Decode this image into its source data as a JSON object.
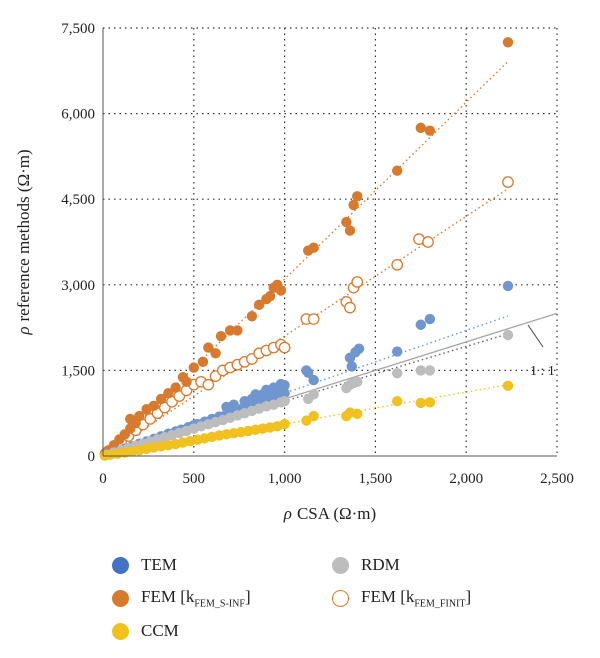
{
  "chart_data": {
    "type": "scatter",
    "x_axis": {
      "label_symbol": "ρ",
      "label_text": "CSA (Ω·m)",
      "min": 0,
      "max": 2500,
      "ticks": [
        0,
        500,
        1000,
        1500,
        2000,
        2500
      ],
      "tick_labels": [
        "0",
        "500",
        "1,000",
        "1,500",
        "2,000",
        "2,500"
      ]
    },
    "y_axis": {
      "label_symbol": "ρ",
      "label_text": "reference methods (Ω·m)",
      "min": 0,
      "max": 7500,
      "ticks": [
        0,
        1500,
        3000,
        4500,
        6000,
        7500
      ],
      "tick_labels": [
        "0",
        "1,500",
        "3,000",
        "4,500",
        "6,000",
        "7,500"
      ]
    },
    "grid": "dotted",
    "legend_position": "bottom",
    "annotation": "1 : 1",
    "reference_line": {
      "slope": 1,
      "x_range": [
        0,
        2500
      ]
    },
    "series": [
      {
        "id": "tem",
        "name": "TEM",
        "marker": "filled",
        "color": "#6f96cf",
        "legend_color": "#4472c4",
        "trend": {
          "slope": 1.1,
          "x_range": [
            0,
            2230
          ]
        },
        "points": [
          [
            20,
            25
          ],
          [
            50,
            55
          ],
          [
            80,
            85
          ],
          [
            120,
            130
          ],
          [
            160,
            170
          ],
          [
            200,
            215
          ],
          [
            240,
            255
          ],
          [
            280,
            300
          ],
          [
            320,
            345
          ],
          [
            360,
            390
          ],
          [
            400,
            430
          ],
          [
            430,
            460
          ],
          [
            470,
            505
          ],
          [
            500,
            540
          ],
          [
            520,
            560
          ],
          [
            560,
            600
          ],
          [
            600,
            650
          ],
          [
            640,
            690
          ],
          [
            680,
            730
          ],
          [
            720,
            780
          ],
          [
            760,
            820
          ],
          [
            800,
            870
          ],
          [
            850,
            920
          ],
          [
            900,
            980
          ],
          [
            950,
            1030
          ],
          [
            970,
            1060
          ],
          [
            990,
            1080
          ],
          [
            1000,
            1100
          ],
          [
            680,
            860
          ],
          [
            720,
            900
          ],
          [
            780,
            960
          ],
          [
            820,
            1000
          ],
          [
            860,
            1050
          ],
          [
            880,
            1080
          ],
          [
            920,
            1120
          ],
          [
            960,
            1180
          ],
          [
            1000,
            1240
          ],
          [
            840,
            1080
          ],
          [
            900,
            1160
          ],
          [
            940,
            1200
          ],
          [
            980,
            1260
          ],
          [
            1120,
            1500
          ],
          [
            1130,
            1460
          ],
          [
            1160,
            1330
          ],
          [
            1360,
            1720
          ],
          [
            1390,
            1820
          ],
          [
            1410,
            1880
          ],
          [
            1370,
            1570
          ],
          [
            1620,
            1830
          ],
          [
            1750,
            2300
          ],
          [
            1800,
            2400
          ],
          [
            2230,
            2980
          ]
        ]
      },
      {
        "id": "rdm",
        "name": "RDM",
        "marker": "filled",
        "color": "#bdbdbd",
        "legend_color": "#bdbdbd",
        "trend": {
          "slope": 0.96,
          "x_range": [
            0,
            2230
          ]
        },
        "points": [
          [
            20,
            20
          ],
          [
            60,
            60
          ],
          [
            100,
            100
          ],
          [
            140,
            140
          ],
          [
            180,
            180
          ],
          [
            220,
            215
          ],
          [
            260,
            250
          ],
          [
            300,
            290
          ],
          [
            340,
            330
          ],
          [
            380,
            365
          ],
          [
            420,
            405
          ],
          [
            460,
            440
          ],
          [
            500,
            480
          ],
          [
            540,
            520
          ],
          [
            580,
            555
          ],
          [
            620,
            595
          ],
          [
            660,
            630
          ],
          [
            700,
            670
          ],
          [
            740,
            710
          ],
          [
            780,
            750
          ],
          [
            820,
            790
          ],
          [
            860,
            830
          ],
          [
            900,
            870
          ],
          [
            940,
            900
          ],
          [
            980,
            940
          ],
          [
            1000,
            960
          ],
          [
            1130,
            1000
          ],
          [
            1160,
            1080
          ],
          [
            1340,
            1190
          ],
          [
            1360,
            1250
          ],
          [
            1380,
            1280
          ],
          [
            1400,
            1300
          ],
          [
            1620,
            1450
          ],
          [
            1750,
            1500
          ],
          [
            1800,
            1500
          ],
          [
            2230,
            2120
          ]
        ]
      },
      {
        "id": "fem_inf",
        "name": "FEM [k",
        "sub": "FEM_S-INF",
        "name_end": "]",
        "marker": "filled",
        "color": "#d77a2e",
        "legend_color": "#d77a2e",
        "trend": {
          "slope": 3.1,
          "x_range": [
            0,
            2230
          ]
        },
        "points": [
          [
            10,
            40
          ],
          [
            30,
            100
          ],
          [
            60,
            190
          ],
          [
            90,
            290
          ],
          [
            120,
            380
          ],
          [
            150,
            480
          ],
          [
            180,
            580
          ],
          [
            150,
            650
          ],
          [
            200,
            700
          ],
          [
            240,
            820
          ],
          [
            280,
            880
          ],
          [
            320,
            1000
          ],
          [
            360,
            1100
          ],
          [
            400,
            1200
          ],
          [
            440,
            1380
          ],
          [
            460,
            1300
          ],
          [
            500,
            1550
          ],
          [
            550,
            1650
          ],
          [
            580,
            1900
          ],
          [
            620,
            1800
          ],
          [
            650,
            2100
          ],
          [
            700,
            2200
          ],
          [
            740,
            2200
          ],
          [
            820,
            2450
          ],
          [
            860,
            2650
          ],
          [
            900,
            2750
          ],
          [
            920,
            2800
          ],
          [
            940,
            2950
          ],
          [
            960,
            3000
          ],
          [
            980,
            2900
          ],
          [
            1130,
            3600
          ],
          [
            1160,
            3650
          ],
          [
            1340,
            4100
          ],
          [
            1360,
            3950
          ],
          [
            1380,
            4400
          ],
          [
            1400,
            4550
          ],
          [
            1620,
            5000
          ],
          [
            1750,
            5750
          ],
          [
            1800,
            5700
          ],
          [
            2230,
            7250
          ]
        ]
      },
      {
        "id": "fem_finit",
        "name": "FEM [k",
        "sub": "FEM_FINIT",
        "name_end": "]",
        "marker": "open",
        "color": "#d77a2e",
        "legend_color": "#d77a2e",
        "trend": {
          "slope": 2.1,
          "x_range": [
            0,
            2230
          ]
        },
        "points": [
          [
            20,
            60
          ],
          [
            60,
            150
          ],
          [
            100,
            250
          ],
          [
            140,
            350
          ],
          [
            180,
            450
          ],
          [
            220,
            550
          ],
          [
            260,
            650
          ],
          [
            300,
            750
          ],
          [
            340,
            850
          ],
          [
            380,
            950
          ],
          [
            420,
            1050
          ],
          [
            460,
            1150
          ],
          [
            500,
            1250
          ],
          [
            540,
            1300
          ],
          [
            580,
            1250
          ],
          [
            620,
            1400
          ],
          [
            660,
            1500
          ],
          [
            700,
            1550
          ],
          [
            740,
            1600
          ],
          [
            780,
            1650
          ],
          [
            820,
            1700
          ],
          [
            860,
            1800
          ],
          [
            900,
            1850
          ],
          [
            940,
            1900
          ],
          [
            980,
            1950
          ],
          [
            1000,
            1900
          ],
          [
            1120,
            2400
          ],
          [
            1160,
            2400
          ],
          [
            1340,
            2700
          ],
          [
            1360,
            2600
          ],
          [
            1380,
            2950
          ],
          [
            1400,
            3050
          ],
          [
            1620,
            3350
          ],
          [
            1740,
            3800
          ],
          [
            1790,
            3750
          ],
          [
            2230,
            4800
          ]
        ]
      },
      {
        "id": "ccm",
        "name": "CCM",
        "marker": "filled",
        "color": "#f0c11f",
        "legend_color": "#f0c11f",
        "trend": {
          "slope": 0.56,
          "x_range": [
            0,
            2230
          ]
        },
        "points": [
          [
            10,
            5
          ],
          [
            40,
            20
          ],
          [
            80,
            40
          ],
          [
            120,
            60
          ],
          [
            160,
            80
          ],
          [
            200,
            100
          ],
          [
            240,
            125
          ],
          [
            280,
            150
          ],
          [
            320,
            170
          ],
          [
            360,
            190
          ],
          [
            400,
            210
          ],
          [
            440,
            235
          ],
          [
            480,
            260
          ],
          [
            520,
            285
          ],
          [
            560,
            310
          ],
          [
            600,
            335
          ],
          [
            640,
            360
          ],
          [
            680,
            380
          ],
          [
            720,
            400
          ],
          [
            760,
            420
          ],
          [
            800,
            440
          ],
          [
            840,
            460
          ],
          [
            880,
            480
          ],
          [
            920,
            500
          ],
          [
            960,
            520
          ],
          [
            1000,
            560
          ],
          [
            1120,
            620
          ],
          [
            1160,
            700
          ],
          [
            1340,
            700
          ],
          [
            1360,
            760
          ],
          [
            1400,
            740
          ],
          [
            1620,
            960
          ],
          [
            1750,
            930
          ],
          [
            1800,
            940
          ],
          [
            2230,
            1230
          ]
        ]
      }
    ]
  }
}
